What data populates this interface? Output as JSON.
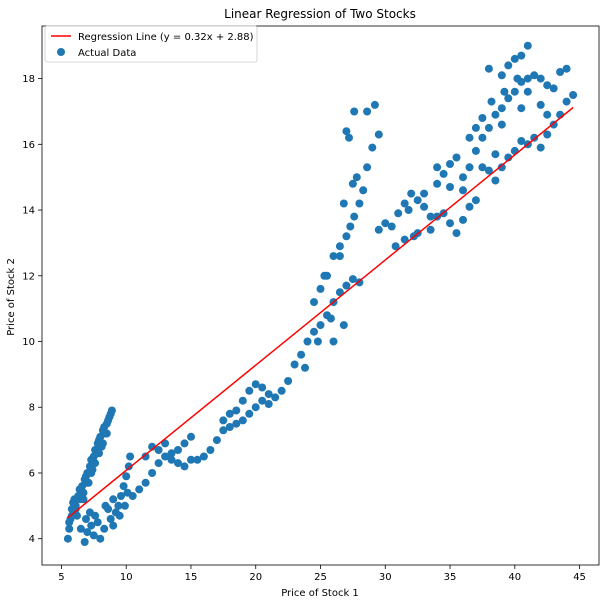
{
  "chart_data": {
    "type": "scatter",
    "title": "Linear Regression of Two Stocks",
    "xlabel": "Price of Stock 1",
    "ylabel": "Price of Stock 2",
    "xlim": [
      3.5,
      46.5
    ],
    "ylim": [
      3.2,
      19.6
    ],
    "xticks": [
      5,
      10,
      15,
      20,
      25,
      30,
      35,
      40,
      45
    ],
    "yticks": [
      4,
      6,
      8,
      10,
      12,
      14,
      16,
      18
    ],
    "grid": false,
    "legend_position": "top-left",
    "regression": {
      "name": "Regression Line (y = 0.32x + 2.88)",
      "slope": 0.32,
      "intercept": 2.88,
      "x_range": [
        5.5,
        44.5
      ],
      "color": "#ff0000"
    },
    "series": [
      {
        "name": "Actual Data",
        "color": "#1f77b4",
        "points": [
          [
            5.5,
            4.0
          ],
          [
            5.6,
            4.3
          ],
          [
            5.7,
            4.6
          ],
          [
            5.8,
            4.9
          ],
          [
            5.9,
            5.1
          ],
          [
            6.0,
            5.2
          ],
          [
            6.1,
            5.0
          ],
          [
            6.2,
            4.7
          ],
          [
            6.3,
            5.3
          ],
          [
            6.4,
            5.5
          ],
          [
            6.5,
            5.4
          ],
          [
            6.6,
            5.6
          ],
          [
            6.7,
            5.2
          ],
          [
            6.8,
            5.8
          ],
          [
            6.9,
            5.9
          ],
          [
            7.0,
            6.0
          ],
          [
            7.1,
            5.7
          ],
          [
            7.2,
            6.2
          ],
          [
            7.3,
            6.4
          ],
          [
            7.4,
            6.1
          ],
          [
            7.5,
            6.5
          ],
          [
            7.6,
            6.7
          ],
          [
            7.7,
            6.6
          ],
          [
            7.8,
            6.9
          ],
          [
            7.9,
            7.0
          ],
          [
            8.0,
            7.1
          ],
          [
            8.1,
            6.8
          ],
          [
            8.2,
            7.3
          ],
          [
            8.3,
            7.4
          ],
          [
            8.4,
            7.2
          ],
          [
            8.5,
            7.5
          ],
          [
            8.6,
            7.6
          ],
          [
            8.7,
            7.7
          ],
          [
            8.8,
            7.8
          ],
          [
            8.9,
            7.9
          ],
          [
            8.5,
            7.2
          ],
          [
            8.2,
            6.9
          ],
          [
            7.9,
            6.6
          ],
          [
            7.6,
            6.3
          ],
          [
            7.3,
            6.0
          ],
          [
            7.0,
            5.7
          ],
          [
            6.7,
            5.4
          ],
          [
            6.4,
            5.2
          ],
          [
            6.1,
            4.9
          ],
          [
            5.8,
            4.7
          ],
          [
            5.6,
            4.5
          ],
          [
            6.5,
            4.3
          ],
          [
            7.0,
            4.2
          ],
          [
            7.5,
            4.1
          ],
          [
            8.0,
            4.0
          ],
          [
            6.8,
            3.9
          ],
          [
            7.3,
            4.4
          ],
          [
            7.8,
            4.5
          ],
          [
            8.3,
            4.3
          ],
          [
            8.8,
            4.6
          ],
          [
            9.0,
            4.4
          ],
          [
            9.2,
            4.8
          ],
          [
            9.4,
            5.0
          ],
          [
            9.6,
            5.3
          ],
          [
            9.8,
            5.6
          ],
          [
            10.0,
            5.9
          ],
          [
            10.2,
            6.2
          ],
          [
            10.3,
            6.5
          ],
          [
            9.5,
            4.7
          ],
          [
            8.6,
            4.9
          ],
          [
            9.0,
            5.2
          ],
          [
            8.4,
            5.0
          ],
          [
            7.6,
            4.7
          ],
          [
            7.2,
            4.8
          ],
          [
            6.9,
            4.6
          ],
          [
            9.9,
            5.0
          ],
          [
            10.1,
            5.4
          ],
          [
            10.5,
            5.3
          ],
          [
            11.0,
            5.5
          ],
          [
            11.5,
            5.7
          ],
          [
            12.0,
            6.0
          ],
          [
            12.5,
            6.3
          ],
          [
            13.0,
            6.5
          ],
          [
            13.5,
            6.6
          ],
          [
            14.0,
            6.7
          ],
          [
            14.5,
            6.9
          ],
          [
            15.0,
            7.1
          ],
          [
            11.5,
            6.5
          ],
          [
            12.0,
            6.8
          ],
          [
            12.5,
            6.7
          ],
          [
            13.0,
            6.9
          ],
          [
            13.5,
            6.4
          ],
          [
            14.0,
            6.3
          ],
          [
            14.5,
            6.2
          ],
          [
            15.0,
            6.4
          ],
          [
            15.5,
            6.4
          ],
          [
            16.0,
            6.5
          ],
          [
            16.5,
            6.7
          ],
          [
            17.0,
            7.0
          ],
          [
            17.5,
            7.3
          ],
          [
            18.0,
            7.4
          ],
          [
            18.5,
            7.5
          ],
          [
            19.0,
            7.6
          ],
          [
            19.5,
            7.8
          ],
          [
            20.0,
            8.0
          ],
          [
            20.5,
            8.2
          ],
          [
            21.0,
            8.1
          ],
          [
            17.5,
            7.6
          ],
          [
            18.0,
            7.8
          ],
          [
            18.5,
            7.9
          ],
          [
            19.0,
            8.2
          ],
          [
            19.5,
            8.5
          ],
          [
            20.0,
            8.7
          ],
          [
            20.5,
            8.6
          ],
          [
            21.0,
            8.4
          ],
          [
            21.5,
            8.3
          ],
          [
            22.0,
            8.5
          ],
          [
            22.5,
            8.8
          ],
          [
            23.0,
            9.3
          ],
          [
            23.5,
            9.6
          ],
          [
            24.0,
            10.0
          ],
          [
            24.5,
            10.3
          ],
          [
            25.0,
            10.5
          ],
          [
            25.5,
            10.8
          ],
          [
            26.0,
            11.2
          ],
          [
            26.5,
            11.5
          ],
          [
            27.0,
            11.7
          ],
          [
            27.5,
            11.9
          ],
          [
            28.0,
            11.8
          ],
          [
            24.5,
            11.2
          ],
          [
            25.0,
            11.6
          ],
          [
            25.3,
            12.0
          ],
          [
            26.0,
            12.6
          ],
          [
            26.5,
            12.9
          ],
          [
            27.0,
            13.2
          ],
          [
            27.3,
            13.5
          ],
          [
            27.6,
            13.8
          ],
          [
            28.0,
            14.2
          ],
          [
            28.3,
            14.6
          ],
          [
            28.6,
            15.3
          ],
          [
            29.0,
            15.9
          ],
          [
            27.5,
            14.8
          ],
          [
            27.8,
            15.0
          ],
          [
            26.8,
            14.2
          ],
          [
            27.2,
            16.2
          ],
          [
            27.0,
            16.4
          ],
          [
            29.2,
            17.2
          ],
          [
            29.5,
            16.3
          ],
          [
            28.6,
            17.0
          ],
          [
            27.6,
            17.0
          ],
          [
            26.5,
            12.6
          ],
          [
            25.5,
            12.0
          ],
          [
            24.8,
            10.0
          ],
          [
            23.8,
            9.2
          ],
          [
            26.0,
            10.0
          ],
          [
            26.8,
            10.5
          ],
          [
            25.8,
            10.7
          ],
          [
            29.5,
            13.4
          ],
          [
            30.0,
            13.6
          ],
          [
            30.5,
            13.5
          ],
          [
            31.0,
            13.9
          ],
          [
            31.5,
            14.2
          ],
          [
            32.0,
            14.5
          ],
          [
            32.5,
            14.3
          ],
          [
            33.0,
            14.5
          ],
          [
            31.8,
            14.0
          ],
          [
            32.2,
            13.2
          ],
          [
            30.8,
            12.9
          ],
          [
            31.5,
            13.1
          ],
          [
            32.5,
            13.3
          ],
          [
            33.5,
            13.4
          ],
          [
            34.0,
            13.8
          ],
          [
            34.5,
            13.9
          ],
          [
            35.0,
            13.6
          ],
          [
            35.5,
            13.3
          ],
          [
            36.0,
            13.7
          ],
          [
            36.5,
            14.1
          ],
          [
            34.0,
            14.8
          ],
          [
            34.5,
            15.1
          ],
          [
            35.0,
            15.4
          ],
          [
            35.5,
            15.6
          ],
          [
            36.0,
            15.0
          ],
          [
            36.5,
            15.3
          ],
          [
            37.0,
            15.8
          ],
          [
            37.5,
            16.2
          ],
          [
            38.0,
            16.5
          ],
          [
            38.5,
            16.9
          ],
          [
            39.0,
            17.1
          ],
          [
            39.5,
            17.4
          ],
          [
            40.0,
            17.6
          ],
          [
            40.5,
            17.9
          ],
          [
            41.0,
            18.0
          ],
          [
            41.5,
            18.1
          ],
          [
            42.0,
            18.0
          ],
          [
            42.5,
            17.8
          ],
          [
            43.0,
            17.7
          ],
          [
            43.5,
            18.2
          ],
          [
            44.0,
            18.3
          ],
          [
            44.5,
            17.5
          ],
          [
            39.0,
            18.1
          ],
          [
            39.5,
            18.4
          ],
          [
            40.0,
            18.6
          ],
          [
            40.5,
            18.7
          ],
          [
            41.0,
            19.0
          ],
          [
            40.2,
            18.0
          ],
          [
            39.2,
            17.6
          ],
          [
            38.2,
            17.3
          ],
          [
            36.5,
            16.2
          ],
          [
            37.0,
            16.5
          ],
          [
            37.5,
            16.8
          ],
          [
            38.0,
            15.2
          ],
          [
            38.5,
            14.9
          ],
          [
            39.0,
            15.3
          ],
          [
            39.5,
            15.6
          ],
          [
            40.0,
            15.8
          ],
          [
            40.5,
            16.1
          ],
          [
            41.0,
            16.0
          ],
          [
            41.5,
            16.2
          ],
          [
            42.0,
            15.9
          ],
          [
            42.5,
            16.3
          ],
          [
            43.0,
            16.6
          ],
          [
            43.5,
            16.9
          ],
          [
            44.0,
            17.3
          ],
          [
            42.0,
            17.2
          ],
          [
            42.5,
            16.9
          ],
          [
            41.0,
            17.6
          ],
          [
            40.5,
            17.1
          ],
          [
            38.0,
            18.3
          ],
          [
            39.0,
            16.6
          ],
          [
            38.5,
            15.7
          ],
          [
            37.5,
            15.3
          ],
          [
            36.0,
            14.6
          ],
          [
            35.0,
            14.7
          ],
          [
            34.0,
            15.3
          ],
          [
            33.0,
            14.1
          ],
          [
            33.5,
            13.8
          ],
          [
            37.0,
            14.3
          ]
        ]
      }
    ]
  }
}
